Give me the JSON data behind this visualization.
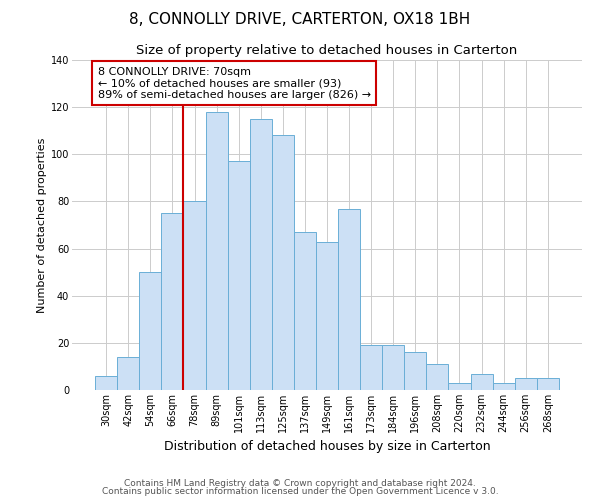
{
  "title": "8, CONNOLLY DRIVE, CARTERTON, OX18 1BH",
  "subtitle": "Size of property relative to detached houses in Carterton",
  "xlabel": "Distribution of detached houses by size in Carterton",
  "ylabel": "Number of detached properties",
  "bar_labels": [
    "30sqm",
    "42sqm",
    "54sqm",
    "66sqm",
    "78sqm",
    "89sqm",
    "101sqm",
    "113sqm",
    "125sqm",
    "137sqm",
    "149sqm",
    "161sqm",
    "173sqm",
    "184sqm",
    "196sqm",
    "208sqm",
    "220sqm",
    "232sqm",
    "244sqm",
    "256sqm",
    "268sqm"
  ],
  "bar_values": [
    6,
    14,
    50,
    75,
    80,
    118,
    97,
    115,
    108,
    67,
    63,
    77,
    19,
    19,
    16,
    11,
    3,
    7,
    3,
    5,
    5
  ],
  "bar_color": "#cce0f5",
  "bar_edge_color": "#6aaed6",
  "vline_x": 3.5,
  "vline_color": "#cc0000",
  "annotation_text": "8 CONNOLLY DRIVE: 70sqm\n← 10% of detached houses are smaller (93)\n89% of semi-detached houses are larger (826) →",
  "annotation_box_edgecolor": "#cc0000",
  "annotation_box_facecolor": "#ffffff",
  "ylim": [
    0,
    140
  ],
  "yticks": [
    0,
    20,
    40,
    60,
    80,
    100,
    120,
    140
  ],
  "footer1": "Contains HM Land Registry data © Crown copyright and database right 2024.",
  "footer2": "Contains public sector information licensed under the Open Government Licence v 3.0.",
  "title_fontsize": 11,
  "subtitle_fontsize": 9.5,
  "xlabel_fontsize": 9,
  "ylabel_fontsize": 8,
  "tick_fontsize": 7,
  "annotation_fontsize": 8,
  "footer_fontsize": 6.5
}
